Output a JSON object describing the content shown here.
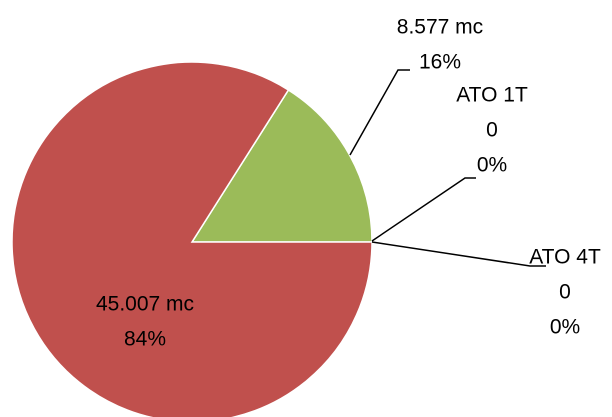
{
  "chart_data": {
    "type": "pie",
    "categories": [
      null,
      "ATO 1T",
      "ATO 4T",
      null
    ],
    "values": [
      8.577,
      0,
      0,
      45.007
    ],
    "value_labels": [
      "8.577 mc",
      "0",
      "0",
      "45.007 mc"
    ],
    "percentages": [
      16,
      0,
      0,
      84
    ],
    "percentage_labels": [
      "16%",
      "0%",
      "0%",
      "84%"
    ],
    "colors": [
      "#9bbb59",
      "#4f81bd",
      "#8064a2",
      "#c0504d"
    ]
  }
}
